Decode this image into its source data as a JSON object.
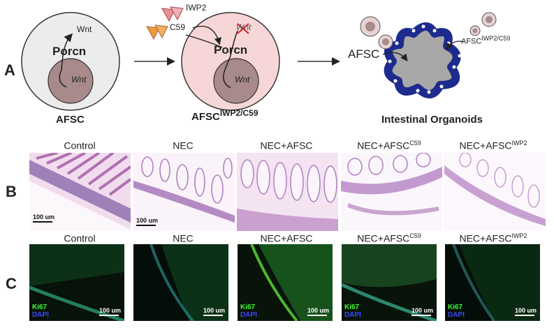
{
  "panel_letters": {
    "a": "A",
    "b": "B",
    "c": "C"
  },
  "schematic": {
    "cell1": {
      "porcn": "Porcn",
      "wnt_out": "Wnt",
      "wnt_in": "Wnt",
      "label": "AFSC"
    },
    "cell2": {
      "porcn": "Porcn",
      "wnt_out": "Wnt",
      "wnt_in": "Wnt",
      "inhibitor1": "IWP2",
      "inhibitor2": "C59",
      "label_base": "AFSC",
      "label_sup": "IWP2/C59"
    },
    "organoid": {
      "afsc": "AFSC",
      "afsc2_base": "AFSC",
      "afsc2_sup": "IWP2/C59",
      "label": "Intestinal Organoids"
    }
  },
  "columns": [
    {
      "base": "Control",
      "sup": ""
    },
    {
      "base": "NEC",
      "sup": ""
    },
    {
      "base": "NEC+AFSC",
      "sup": ""
    },
    {
      "base": "NEC+AFSC",
      "sup": "C59"
    },
    {
      "base": "NEC+AFSC",
      "sup": "IWP2"
    }
  ],
  "scale_label": "100 um",
  "stains": {
    "marker": "Ki67",
    "nuclear": "DAPI"
  },
  "colors": {
    "cell_fill": "#ececec",
    "cell2_fill": "#f6d6d6",
    "nucleus": "#a88a8a",
    "organoid": "#1d2b8f",
    "ki67": "#39ff2a",
    "dapi": "#3a4bff",
    "inhibitor_pink": "#e8909a",
    "inhibitor_orange": "#ee9a3a"
  }
}
